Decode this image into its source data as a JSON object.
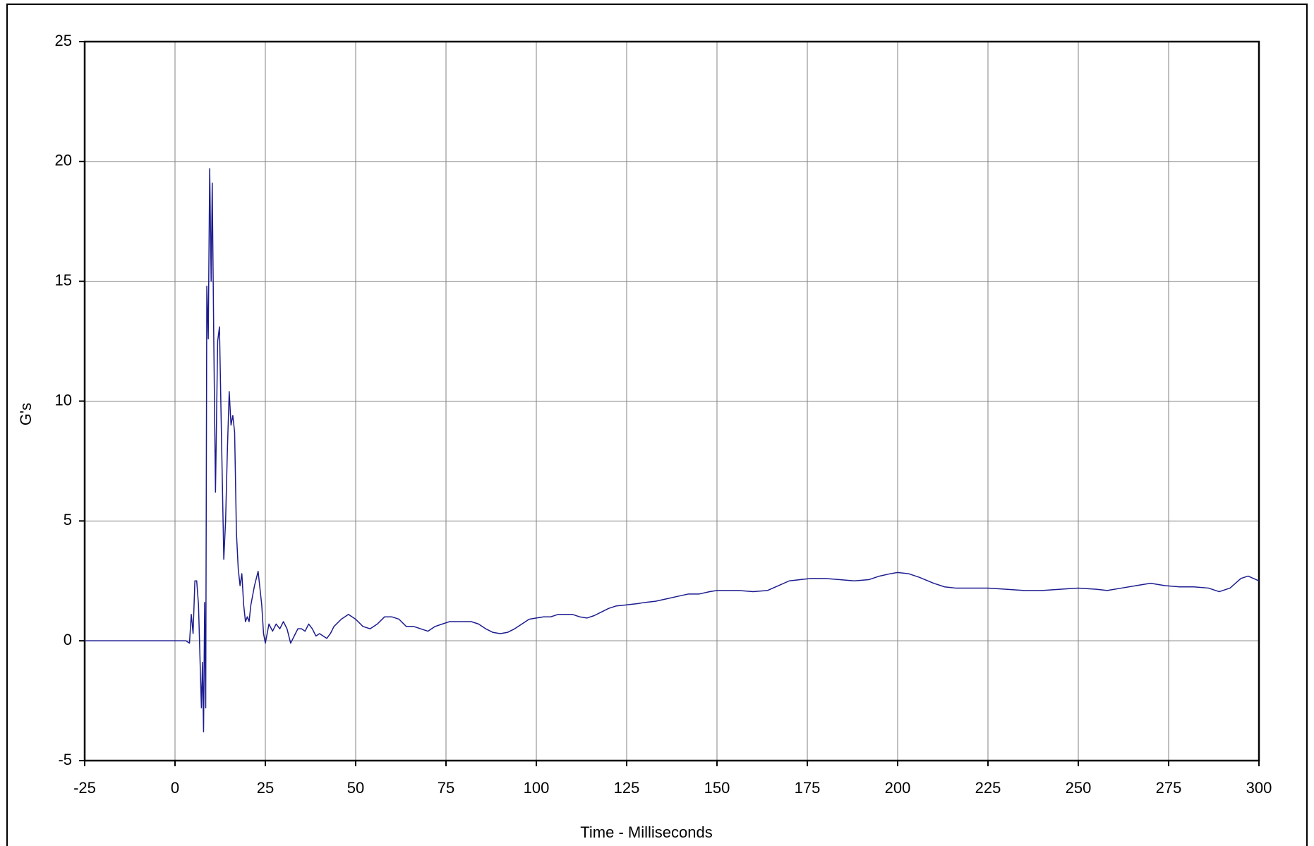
{
  "chart_data": {
    "type": "line",
    "x_label": "Time - Milliseconds",
    "y_label": "G's",
    "x": [
      -25,
      -20,
      -15,
      -10,
      -5,
      0,
      3,
      4,
      4.5,
      5,
      5.5,
      6,
      6.5,
      7,
      7.3,
      7.6,
      7.9,
      8.2,
      8.5,
      8.8,
      9.2,
      9.6,
      10,
      10.3,
      10.7,
      11.2,
      11.8,
      12.3,
      12.8,
      13.5,
      14,
      14.5,
      15,
      15.5,
      16,
      16.5,
      17,
      17.5,
      18,
      18.5,
      19,
      19.5,
      20,
      20.5,
      21,
      22,
      23,
      24,
      24.5,
      25,
      26,
      27,
      28,
      29,
      30,
      31,
      32,
      33,
      34,
      35,
      36,
      37,
      38,
      39,
      40,
      41,
      42,
      43,
      44,
      46,
      48,
      50,
      52,
      54,
      56,
      58,
      60,
      62,
      64,
      66,
      68,
      70,
      72,
      74,
      76,
      78,
      80,
      82,
      84,
      86,
      88,
      90,
      92,
      94,
      96,
      98,
      100,
      102,
      104,
      106,
      108,
      110,
      112,
      114,
      116,
      118,
      120,
      122,
      125,
      128,
      130,
      133,
      136,
      139,
      142,
      145,
      148,
      150,
      153,
      156,
      160,
      164,
      167,
      170,
      173,
      176,
      180,
      184,
      188,
      192,
      195,
      198,
      200,
      203,
      206,
      210,
      213,
      216,
      220,
      225,
      230,
      235,
      240,
      245,
      250,
      255,
      258,
      262,
      266,
      270,
      274,
      278,
      282,
      286,
      289,
      292,
      295,
      297,
      300
    ],
    "values": [
      0,
      0,
      0,
      0,
      0,
      0,
      0,
      -0.1,
      1.1,
      0.3,
      2.5,
      2.5,
      1.5,
      -1.2,
      -2.8,
      -0.9,
      -3.8,
      1.6,
      -2.8,
      14.8,
      12.6,
      19.7,
      15,
      19.1,
      13,
      6.2,
      12.5,
      13.1,
      9,
      3.4,
      5,
      8,
      10.4,
      9,
      9.4,
      8.7,
      4.5,
      3,
      2.3,
      2.8,
      1.5,
      0.8,
      1,
      0.8,
      1.5,
      2.3,
      2.9,
      1.5,
      0.3,
      -0.1,
      0.7,
      0.4,
      0.7,
      0.5,
      0.8,
      0.5,
      -0.1,
      0.2,
      0.5,
      0.5,
      0.4,
      0.7,
      0.5,
      0.2,
      0.3,
      0.2,
      0.1,
      0.3,
      0.6,
      0.9,
      1.1,
      0.9,
      0.6,
      0.5,
      0.7,
      1,
      1,
      0.9,
      0.6,
      0.6,
      0.5,
      0.4,
      0.6,
      0.7,
      0.8,
      0.8,
      0.8,
      0.8,
      0.7,
      0.5,
      0.35,
      0.3,
      0.35,
      0.5,
      0.7,
      0.9,
      0.95,
      1,
      1,
      1.1,
      1.1,
      1.1,
      1,
      0.95,
      1.05,
      1.2,
      1.35,
      1.45,
      1.5,
      1.55,
      1.6,
      1.65,
      1.75,
      1.85,
      1.95,
      1.95,
      2.05,
      2.1,
      2.1,
      2.1,
      2.05,
      2.1,
      2.3,
      2.5,
      2.55,
      2.6,
      2.6,
      2.55,
      2.5,
      2.55,
      2.7,
      2.8,
      2.85,
      2.8,
      2.65,
      2.4,
      2.25,
      2.2,
      2.2,
      2.2,
      2.15,
      2.1,
      2.1,
      2.15,
      2.2,
      2.15,
      2.1,
      2.2,
      2.3,
      2.4,
      2.3,
      2.25,
      2.25,
      2.2,
      2.05,
      2.2,
      2.6,
      2.7,
      2.5
    ],
    "color": "#1c1c8f",
    "xlim": [
      -25,
      300
    ],
    "xticks": [
      -25,
      0,
      25,
      50,
      75,
      100,
      125,
      150,
      175,
      200,
      225,
      250,
      275,
      300
    ],
    "ylim": [
      -5,
      25
    ],
    "yticks": [
      -5,
      0,
      5,
      10,
      15,
      20,
      25
    ],
    "grid": true
  }
}
